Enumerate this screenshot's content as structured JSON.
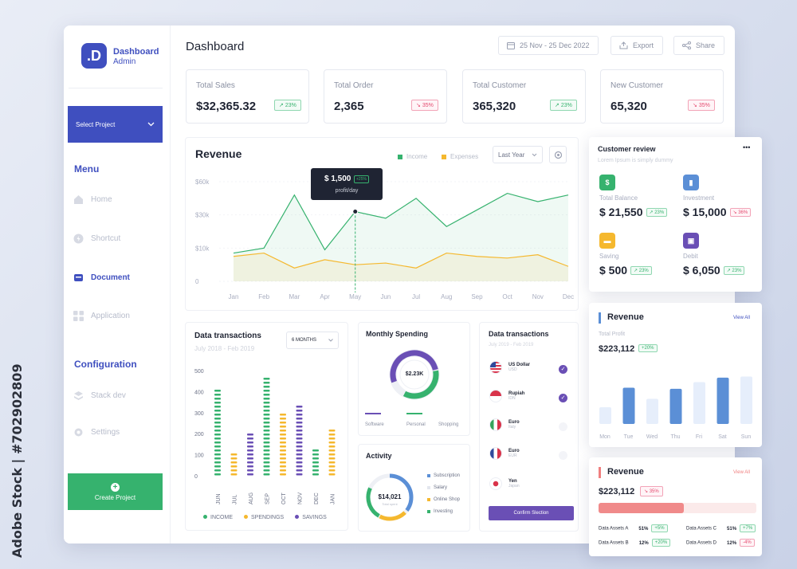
{
  "watermark": {
    "side_text": "Adobe Stock | #702902809"
  },
  "sidebar": {
    "logo_letter": ".D",
    "brand_title": "Dashboard",
    "brand_sub": "Admin",
    "select_project": "Select Project",
    "menu_heading": "Menu",
    "menu_items": [
      {
        "label": "Home",
        "icon": "home-icon",
        "active": false
      },
      {
        "label": "Shortcut",
        "icon": "shortcut-icon",
        "active": false
      },
      {
        "label": "Document",
        "icon": "document-icon",
        "active": true
      },
      {
        "label": "Application",
        "icon": "grid-icon",
        "active": false
      }
    ],
    "config_heading": "Configuration",
    "config_items": [
      {
        "label": "Stack dev",
        "icon": "layers-icon"
      },
      {
        "label": "Settings",
        "icon": "gear-icon"
      }
    ],
    "create_project": "Create Project"
  },
  "header": {
    "title": "Dashboard",
    "date_range": "25 Nov - 25 Dec 2022",
    "export_label": "Export",
    "share_label": "Share"
  },
  "stats": [
    {
      "label": "Total Sales",
      "value": "$32,365.32",
      "badge": "23%",
      "trend": "up"
    },
    {
      "label": "Total Order",
      "value": "2,365",
      "badge": "35%",
      "trend": "down"
    },
    {
      "label": "Total Customer",
      "value": "365,320",
      "badge": "23%",
      "trend": "up"
    },
    {
      "label": "New Customer",
      "value": "65,320",
      "badge": "35%",
      "trend": "down"
    }
  ],
  "revenue": {
    "title": "Revenue",
    "legend_income": "Income",
    "legend_expenses": "Expenses",
    "period": "Last Year",
    "tooltip_value": "$ 1,500",
    "tooltip_badge": "+25%",
    "tooltip_label": "profit/day",
    "colors": {
      "income": "#36b26e",
      "expenses": "#f5b82e"
    }
  },
  "data_transactions": {
    "title": "Data transactions",
    "subtitle": "July 2018 - Feb 2019",
    "period": "6 MONTHS",
    "legend": [
      "INCOME",
      "SPENDINGS",
      "SAVINGS"
    ]
  },
  "monthly_spending": {
    "title": "Monthly Spending",
    "center_value": "$2.23K",
    "labels": [
      "Software",
      "Personal",
      "Shopping"
    ]
  },
  "activity": {
    "title": "Activity",
    "center_value": "$14,021",
    "center_label": "Total spent",
    "legend": [
      "Subscription",
      "Salary",
      "Online Shop",
      "Investing"
    ]
  },
  "currencies": {
    "title": "Data transactions",
    "subtitle": "July 2019 - Feb 2019",
    "items": [
      {
        "name": "US Dollar",
        "code": "USD",
        "checked": true
      },
      {
        "name": "Rupiah",
        "code": "IDN",
        "checked": true
      },
      {
        "name": "Euro",
        "code": "Italy",
        "checked": false
      },
      {
        "name": "Euro",
        "code": "EUR",
        "checked": false
      },
      {
        "name": "Yen",
        "code": "Japan",
        "checked": false
      }
    ],
    "confirm_label": "Confirm Slection"
  },
  "customer_review": {
    "title": "Customer review",
    "subtitle": "Lorem Ipsum is simply dummy",
    "more": "•••",
    "items": [
      {
        "label": "Total Balance",
        "value": "$ 21,550",
        "badge": "23%",
        "trend": "up",
        "color": "#36b26e"
      },
      {
        "label": "Investment",
        "value": "$ 15,000",
        "badge": "36%",
        "trend": "down",
        "color": "#5b8fd6"
      },
      {
        "label": "Saving",
        "value": "$ 500",
        "badge": "23%",
        "trend": "up",
        "color": "#f5b82e"
      },
      {
        "label": "Debit",
        "value": "$ 6,050",
        "badge": "23%",
        "trend": "up",
        "color": "#6a4fb5"
      }
    ]
  },
  "revenue_week": {
    "title": "Revenue",
    "view_all": "View All",
    "sub": "Total Profit",
    "value": "$223,112",
    "badge": "+20%",
    "days": [
      "Mon",
      "Tue",
      "Wed",
      "Thu",
      "Fri",
      "Sat",
      "Sun"
    ]
  },
  "revenue_assets": {
    "title": "Revenue",
    "view_all": "View All",
    "value": "$223,112",
    "badge": "35%",
    "progress": 0.54,
    "assets": [
      {
        "label": "Data Assets A",
        "pct": "51%",
        "badge": "+5%",
        "trend": "up"
      },
      {
        "label": "Data Assets C",
        "pct": "51%",
        "badge": "+7%",
        "trend": "up"
      },
      {
        "label": "Data Assets B",
        "pct": "12%",
        "badge": "+20%",
        "trend": "up"
      },
      {
        "label": "Data Assets D",
        "pct": "12%",
        "badge": "-4%",
        "trend": "down"
      }
    ]
  },
  "chart_data": [
    {
      "type": "line",
      "title": "Revenue",
      "categories": [
        "Jan",
        "Feb",
        "Mar",
        "Apr",
        "May",
        "Jun",
        "Jul",
        "Aug",
        "Sep",
        "Oct",
        "Nov",
        "Dec"
      ],
      "y_ticks": [
        "$60k",
        "$30k",
        "$10k",
        "0"
      ],
      "series": [
        {
          "name": "Income",
          "values": [
            17,
            20,
            52,
            19,
            42,
            38,
            50,
            33,
            43,
            53,
            48,
            52
          ]
        },
        {
          "name": "Expenses",
          "values": [
            15,
            17,
            8,
            13,
            10,
            11,
            8,
            17,
            15,
            14,
            16,
            9
          ]
        }
      ],
      "ylim": [
        0,
        60
      ]
    },
    {
      "type": "bar",
      "title": "Data transactions",
      "categories": [
        "JUN",
        "JUL",
        "AUG",
        "SEP",
        "OCT",
        "NOV",
        "DEC",
        "JAN"
      ],
      "y_ticks": [
        "500",
        "400",
        "300",
        "200",
        "100",
        "0"
      ],
      "series_colors": [
        "#36b26e",
        "#f5b82e",
        "#6a4fb5",
        "#36b26e",
        "#f5b82e",
        "#6a4fb5",
        "#36b26e",
        "#f5b82e"
      ],
      "values": [
        410,
        100,
        200,
        470,
        300,
        330,
        115,
        220
      ],
      "ylim": [
        0,
        500
      ]
    },
    {
      "type": "bar",
      "title": "Revenue",
      "categories": [
        "Mon",
        "Tue",
        "Wed",
        "Thu",
        "Fri",
        "Sat",
        "Sun"
      ],
      "values": [
        30,
        65,
        45,
        63,
        75,
        83,
        85
      ],
      "highlight": [
        false,
        true,
        false,
        true,
        false,
        true,
        false
      ],
      "ylim": [
        0,
        100
      ]
    }
  ]
}
